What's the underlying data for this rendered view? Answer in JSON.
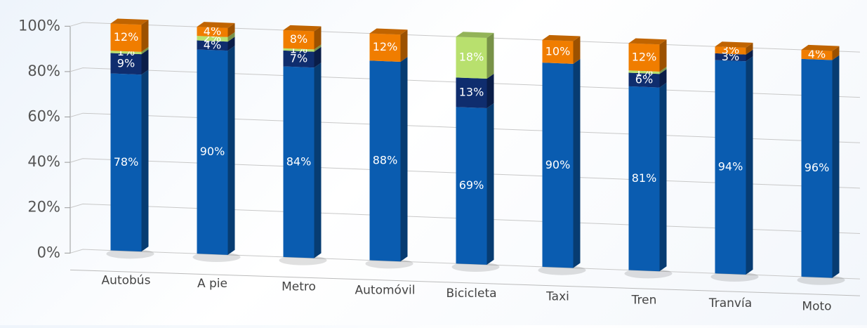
{
  "chart_data": {
    "type": "bar",
    "stacked": true,
    "categories": [
      "Autobús",
      "A pie",
      "Metro",
      "Automóvil",
      "Bicicleta",
      "Taxi",
      "Tren",
      "Tranvía",
      "Moto"
    ],
    "series": [
      {
        "color": "#0a5cb0",
        "values": [
          78,
          90,
          84,
          88,
          69,
          90,
          81,
          94,
          96
        ],
        "value_labels": [
          "78%",
          "90%",
          "84%",
          "88%",
          "69%",
          "90%",
          "81%",
          "94%",
          "96%"
        ]
      },
      {
        "color": "#0f2d6e",
        "values": [
          9,
          4,
          7,
          null,
          13,
          null,
          6,
          3,
          null
        ],
        "value_labels": [
          "9%",
          "4%",
          "7%",
          null,
          "13%",
          null,
          "6%",
          "3%",
          null
        ]
      },
      {
        "color": "#b8e06e",
        "values": [
          1,
          2,
          1,
          null,
          18,
          null,
          1,
          null,
          null
        ],
        "value_labels": [
          "1%",
          "2%",
          "1%",
          null,
          "18%",
          null,
          "1%",
          null,
          null
        ]
      },
      {
        "color": "#f07d00",
        "values": [
          12,
          4,
          8,
          12,
          null,
          10,
          12,
          3,
          4
        ],
        "value_labels": [
          "12%",
          "4%",
          "8%",
          "12%",
          null,
          "10%",
          "12%",
          "3%",
          "4%"
        ]
      }
    ],
    "ylim": [
      0,
      100
    ],
    "yticks": [
      {
        "value": 0,
        "label": "0%"
      },
      {
        "value": 20,
        "label": "20%"
      },
      {
        "value": 40,
        "label": "40%"
      },
      {
        "value": 60,
        "label": "60%"
      },
      {
        "value": 80,
        "label": "80%"
      },
      {
        "value": 100,
        "label": "100%"
      }
    ],
    "grid": true
  }
}
